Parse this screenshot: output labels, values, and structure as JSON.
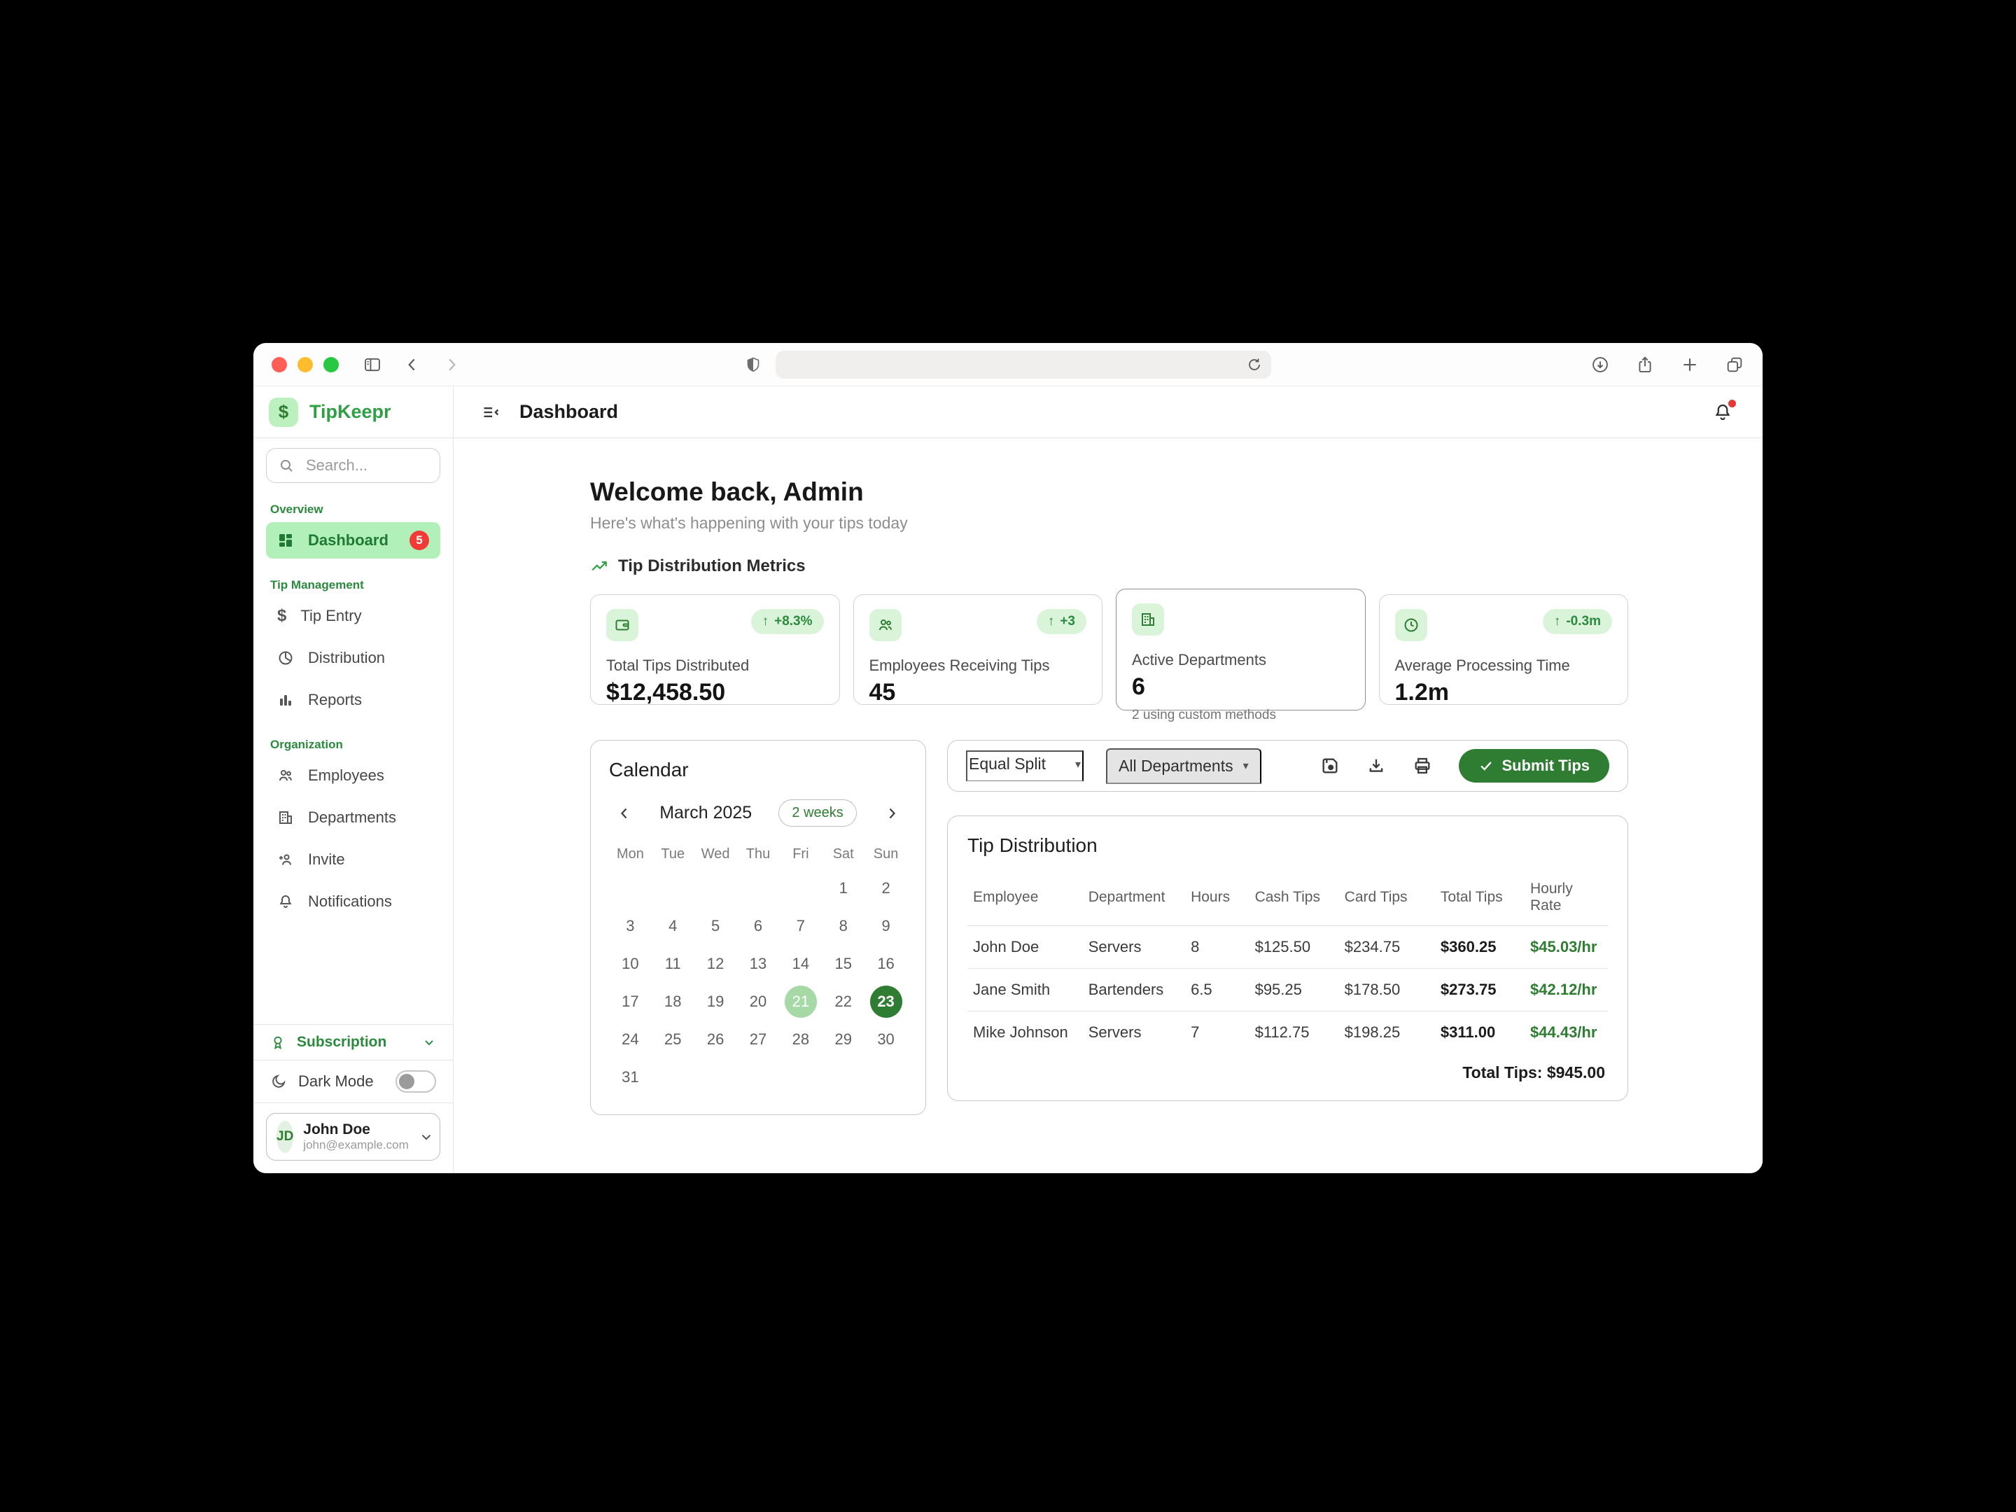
{
  "browser": {
    "address_bar_value": "",
    "icons": {
      "traffic_lights": [
        "close",
        "minimize",
        "zoom"
      ],
      "left": [
        "mac-sidebar-toggle",
        "back-chevron",
        "forward-chevron"
      ],
      "center": [
        "privacy-shield",
        "refresh"
      ],
      "right": [
        "downloads-circle",
        "share",
        "new-tab-plus",
        "tab-overview"
      ]
    }
  },
  "header": {
    "title": "Dashboard"
  },
  "sidebar": {
    "brand": "TipKeepr",
    "logo_glyph": "$",
    "search_placeholder": "Search...",
    "sections": [
      {
        "label": "Overview",
        "items": [
          {
            "label": "Dashboard",
            "icon": "grid-icon",
            "badge": "5",
            "active": true
          }
        ]
      },
      {
        "label": "Tip Management",
        "items": [
          {
            "label": "Tip Entry",
            "icon": "dollar-icon"
          },
          {
            "label": "Distribution",
            "icon": "pie-chart-icon"
          },
          {
            "label": "Reports",
            "icon": "bar-chart-icon"
          }
        ]
      },
      {
        "label": "Organization",
        "items": [
          {
            "label": "Employees",
            "icon": "people-icon"
          },
          {
            "label": "Departments",
            "icon": "building-icon"
          },
          {
            "label": "Invite",
            "icon": "person-add-icon"
          },
          {
            "label": "Notifications",
            "icon": "bell-icon"
          }
        ]
      }
    ],
    "footer": {
      "subscription_label": "Subscription",
      "dark_mode_label": "Dark Mode",
      "dark_mode_on": false,
      "user": {
        "initials": "JD",
        "name": "John Doe",
        "email": "john@example.com"
      }
    }
  },
  "main": {
    "welcome_title": "Welcome back, Admin",
    "welcome_subtitle": "Here's what's happening with your tips today",
    "metrics_heading": "Tip Distribution Metrics",
    "cards": [
      {
        "icon": "wallet-icon",
        "label": "Total Tips Distributed",
        "value": "$12,458.50",
        "trend": "+8.3%"
      },
      {
        "icon": "people-icon",
        "label": "Employees Receiving Tips",
        "value": "45",
        "trend": "+3"
      },
      {
        "icon": "building-icon",
        "label": "Active Departments",
        "value": "6",
        "note": "2 using custom methods"
      },
      {
        "icon": "clock-icon",
        "label": "Average Processing Time",
        "value": "1.2m",
        "trend": "-0.3m"
      }
    ],
    "calendar": {
      "title": "Calendar",
      "month": "March 2025",
      "range_badge": "2 weeks",
      "day_headers": [
        "Mon",
        "Tue",
        "Wed",
        "Thu",
        "Fri",
        "Sat",
        "Sun"
      ],
      "cells": [
        "",
        "",
        "",
        "",
        "",
        "1",
        "2",
        "3",
        "4",
        "5",
        "6",
        "7",
        "8",
        "9",
        "10",
        "11",
        "12",
        "13",
        "14",
        "15",
        "16",
        "17",
        "18",
        "19",
        "20",
        "21",
        "22",
        "23",
        "24",
        "25",
        "26",
        "27",
        "28",
        "29",
        "30",
        "31",
        "",
        "",
        "",
        "",
        "",
        ""
      ],
      "highlighted_day": "21",
      "selected_day": "23"
    },
    "controls": {
      "split_method": "Equal Split",
      "department_filter": "All Departments",
      "submit_label": "Submit Tips",
      "icons": [
        "save-icon",
        "download-icon",
        "print-icon"
      ]
    },
    "table": {
      "title": "Tip Distribution",
      "headers": [
        "Employee",
        "Department",
        "Hours",
        "Cash Tips",
        "Card Tips",
        "Total Tips",
        "Hourly Rate"
      ],
      "rows": [
        [
          "John Doe",
          "Servers",
          "8",
          "$125.50",
          "$234.75",
          "$360.25",
          "$45.03/hr"
        ],
        [
          "Jane Smith",
          "Bartenders",
          "6.5",
          "$95.25",
          "$178.50",
          "$273.75",
          "$42.12/hr"
        ],
        [
          "Mike Johnson",
          "Servers",
          "7",
          "$112.75",
          "$198.25",
          "$311.00",
          "$44.43/hr"
        ]
      ],
      "total": "Total Tips: $945.00"
    }
  },
  "colors": {
    "accent_green": "#2e7d32",
    "brand_green": "#2f9e44",
    "light_green_fill": "#d9f4d9",
    "active_item_green": "#b2f0ba",
    "badge_red": "#f23b36",
    "selected_day_green": "#2e7d32",
    "highlighted_day_green": "#a6d9a6"
  }
}
